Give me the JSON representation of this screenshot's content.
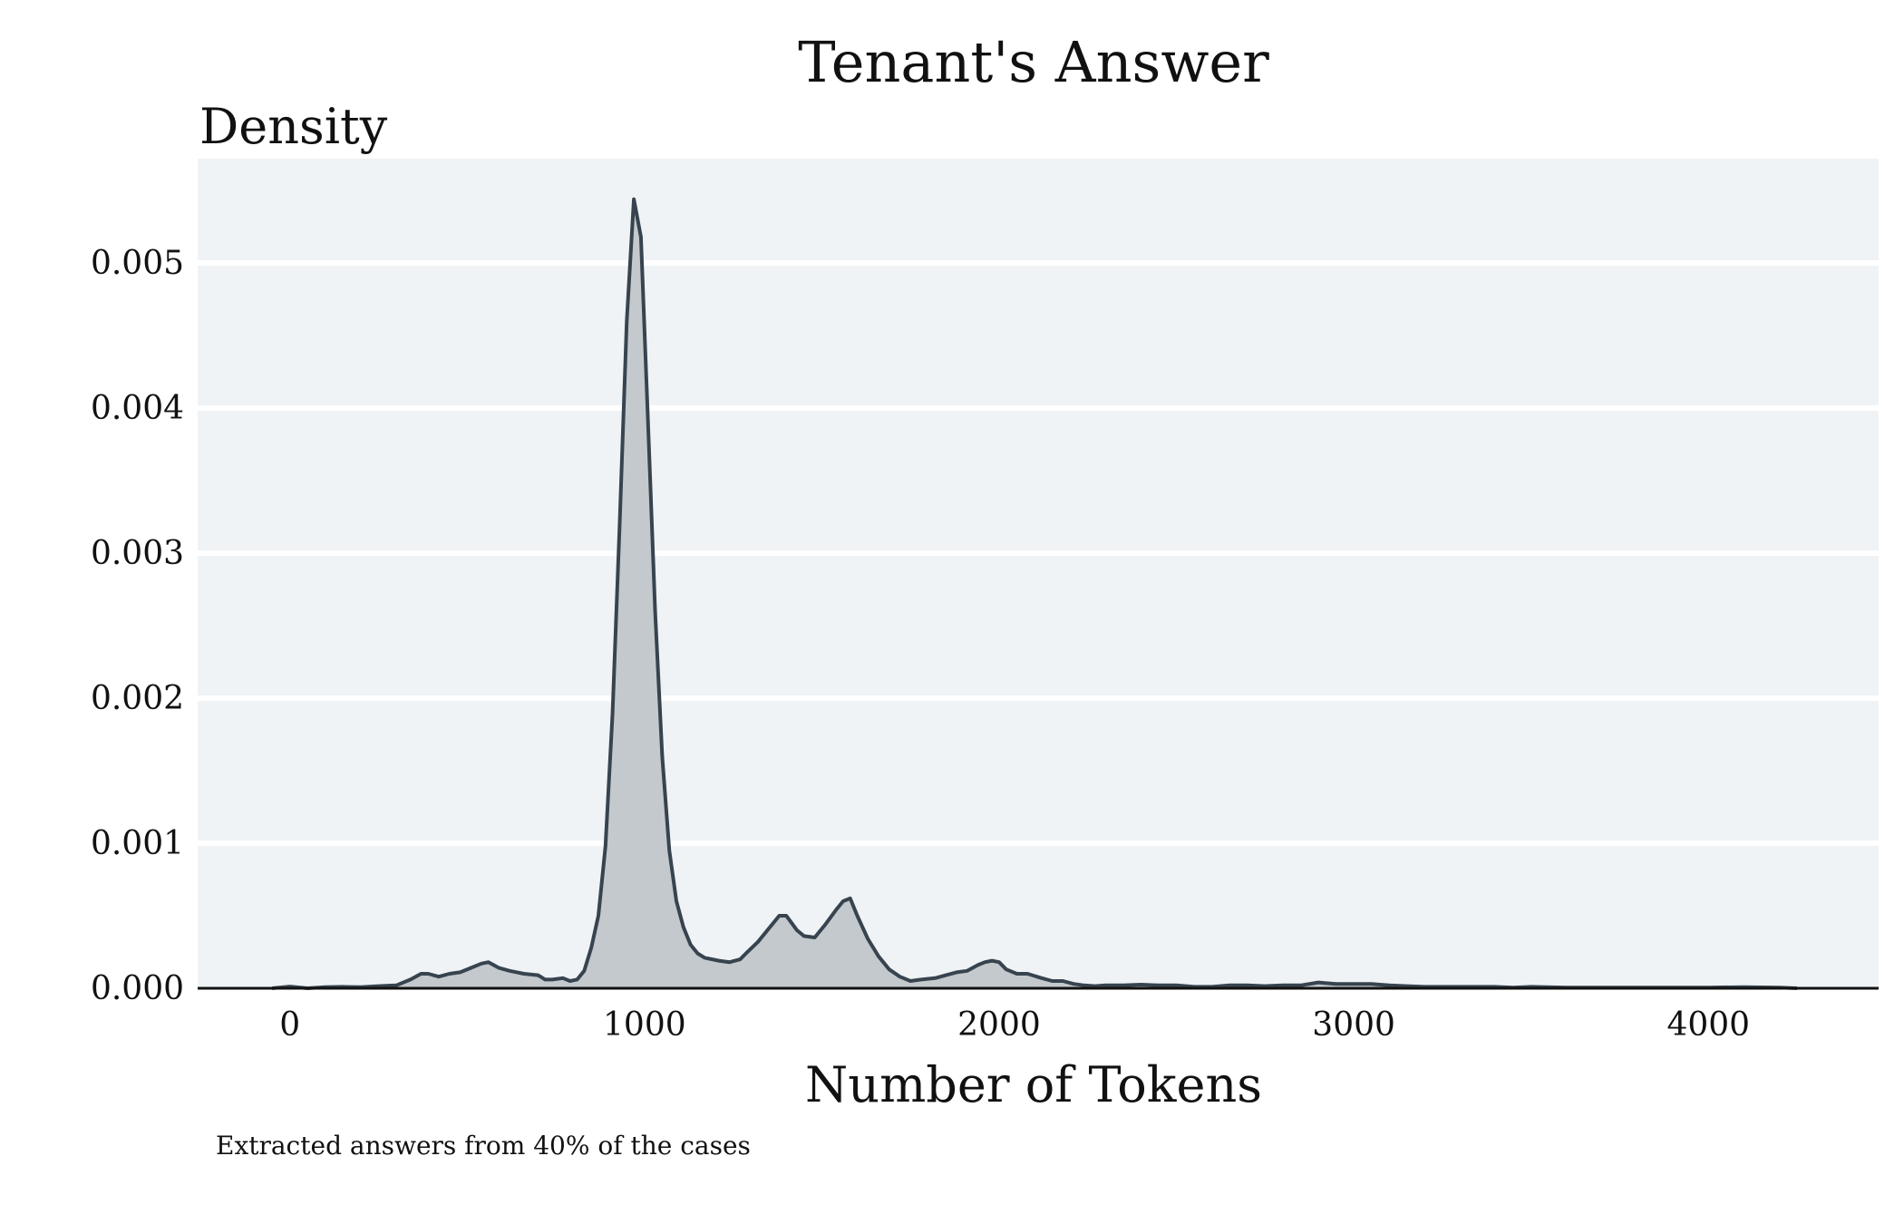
{
  "chart_data": {
    "type": "area",
    "title": "Tenant's Answer",
    "ylabel": "Density",
    "xlabel": "Number of Tokens",
    "caption": "Extracted answers from 40% of the cases",
    "xlim": [
      -260,
      4480
    ],
    "ylim": [
      0,
      0.00572
    ],
    "x_ticks": [
      0,
      1000,
      2000,
      3000,
      4000
    ],
    "x_tick_labels": [
      "0",
      "1000",
      "2000",
      "3000",
      "4000"
    ],
    "y_ticks": [
      0,
      0.001,
      0.002,
      0.003,
      0.004,
      0.005
    ],
    "y_tick_labels": [
      "0.000",
      "0.001",
      "0.002",
      "0.003",
      "0.004",
      "0.005"
    ],
    "grid": true,
    "legend": "none",
    "colors": {
      "panel_background": "#eff3f6",
      "gridline": "#ffffff",
      "area_fill": "#c4c9cd",
      "line": "#37444f",
      "baseline": "#111111"
    },
    "series": [
      {
        "x": [
          -50,
          0,
          50,
          100,
          150,
          200,
          250,
          300,
          340,
          370,
          390,
          420,
          450,
          480,
          510,
          540,
          560,
          590,
          620,
          660,
          700,
          720,
          740,
          770,
          790,
          810,
          830,
          850,
          870,
          890,
          910,
          930,
          950,
          970,
          990,
          1010,
          1030,
          1050,
          1070,
          1090,
          1110,
          1130,
          1150,
          1170,
          1190,
          1210,
          1240,
          1270,
          1290,
          1320,
          1350,
          1380,
          1400,
          1430,
          1450,
          1480,
          1510,
          1540,
          1560,
          1580,
          1600,
          1630,
          1660,
          1690,
          1720,
          1750,
          1780,
          1820,
          1850,
          1880,
          1910,
          1940,
          1960,
          1980,
          2000,
          2020,
          2050,
          2080,
          2120,
          2150,
          2180,
          2210,
          2240,
          2270,
          2300,
          2350,
          2400,
          2450,
          2500,
          2550,
          2600,
          2650,
          2700,
          2750,
          2800,
          2850,
          2900,
          2950,
          3000,
          3050,
          3100,
          3150,
          3200,
          3300,
          3400,
          3450,
          3500,
          3600,
          3700,
          3800,
          3900,
          4000,
          4100,
          4200,
          4250
        ],
        "y": [
          0,
          1.2e-05,
          0,
          8e-06,
          1e-05,
          8e-06,
          1.5e-05,
          2e-05,
          6e-05,
          0.0001,
          0.0001,
          8e-05,
          0.0001,
          0.00011,
          0.00014,
          0.00017,
          0.00018,
          0.00014,
          0.00012,
          0.0001,
          9e-05,
          6e-05,
          6e-05,
          7e-05,
          5e-05,
          6e-05,
          0.00012,
          0.00028,
          0.0005,
          0.00098,
          0.0019,
          0.0032,
          0.0046,
          0.00544,
          0.00518,
          0.0039,
          0.0026,
          0.0016,
          0.00095,
          0.0006,
          0.00042,
          0.0003,
          0.00024,
          0.00021,
          0.0002,
          0.00019,
          0.00018,
          0.0002,
          0.00025,
          0.00032,
          0.00041,
          0.0005,
          0.0005,
          0.0004,
          0.00036,
          0.00035,
          0.00044,
          0.00054,
          0.0006,
          0.00062,
          0.0005,
          0.00034,
          0.00022,
          0.00013,
          8e-05,
          5e-05,
          6e-05,
          7e-05,
          9e-05,
          0.00011,
          0.00012,
          0.00016,
          0.00018,
          0.00019,
          0.00018,
          0.00013,
          0.0001,
          0.0001,
          7e-05,
          5e-05,
          5e-05,
          3e-05,
          2e-05,
          1.5e-05,
          2e-05,
          2e-05,
          2.5e-05,
          2e-05,
          2e-05,
          1e-05,
          1e-05,
          2e-05,
          2e-05,
          1.5e-05,
          2e-05,
          2e-05,
          4e-05,
          3e-05,
          3e-05,
          3e-05,
          2e-05,
          1.5e-05,
          1e-05,
          1e-05,
          1e-05,
          5e-06,
          1e-05,
          5e-06,
          5e-06,
          5e-06,
          5e-06,
          5e-06,
          8e-06,
          5e-06,
          0
        ]
      }
    ]
  }
}
